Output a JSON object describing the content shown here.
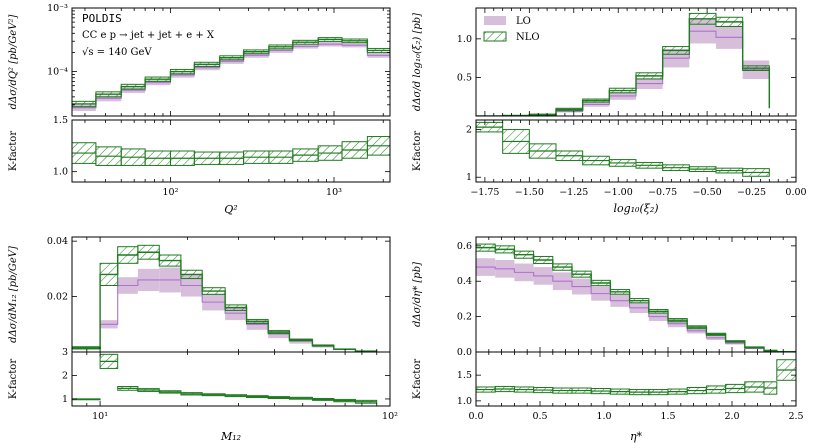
{
  "chart_data": [
    {
      "type": "histogram",
      "id": "q2",
      "title": "",
      "annotations": [
        "POLDIS",
        "CC   e p → jet + jet + e + X",
        "√s = 140 GeV"
      ],
      "xlabel": "Q²",
      "ylabel_top": "dΔσ/dQ² [pb/GeV²]",
      "ylabel_bottom": "K-factor",
      "x_scale": "log",
      "y_scale_top": "log",
      "xlim": [
        25,
        2200
      ],
      "ylim_top": [
        2e-05,
        0.001
      ],
      "ylim_bottom": [
        0.9,
        1.5
      ],
      "x_tick_labels": [
        "10²",
        "10³"
      ],
      "y_tick_labels_top": [
        "10⁻³",
        "10⁻⁴"
      ],
      "y_tick_labels_bottom": [
        "1.0",
        "1.5"
      ],
      "bins": [
        25,
        35,
        50,
        70,
        100,
        140,
        200,
        280,
        400,
        560,
        800,
        1120,
        1600,
        2200
      ],
      "lo": [
        2.7e-05,
        3.8e-05,
        5.1e-05,
        6.7e-05,
        8.8e-05,
        0.000115,
        0.000145,
        0.00018,
        0.000215,
        0.00025,
        0.00027,
        0.00026,
        0.00018
      ],
      "lo_err": [
        3e-06,
        4e-06,
        5e-06,
        6e-06,
        8e-06,
        1e-05,
        1.3e-05,
        1.5e-05,
        1.8e-05,
        2e-05,
        2.2e-05,
        2e-05,
        1.5e-05
      ],
      "nlo": [
        3.1e-05,
        4.4e-05,
        5.8e-05,
        7.6e-05,
        0.0001,
        0.00013,
        0.000165,
        0.000205,
        0.000245,
        0.00029,
        0.00032,
        0.000305,
        0.000215
      ],
      "nlo_err": [
        3e-06,
        4e-06,
        5e-06,
        6e-06,
        8e-06,
        1e-05,
        1.2e-05,
        1.4e-05,
        1.7e-05,
        2e-05,
        2.2e-05,
        2e-05,
        1.6e-05
      ],
      "k": [
        1.18,
        1.15,
        1.14,
        1.13,
        1.13,
        1.13,
        1.13,
        1.14,
        1.14,
        1.16,
        1.18,
        1.21,
        1.25
      ],
      "k_err": [
        0.1,
        0.09,
        0.08,
        0.07,
        0.07,
        0.06,
        0.06,
        0.06,
        0.06,
        0.06,
        0.07,
        0.08,
        0.09
      ]
    },
    {
      "type": "histogram",
      "id": "xi2",
      "legend": [
        "LO",
        "NLO"
      ],
      "legend_loc": "top-left",
      "xlabel": "log₁₀(ξ₂)",
      "ylabel_top": "dΔσ/d log₁₀(ξ₂) [pb]",
      "ylabel_bottom": "K-factor",
      "x_scale": "linear",
      "xlim": [
        -1.8,
        0.0
      ],
      "ylim_top": [
        0.0,
        1.4
      ],
      "ylim_bottom": [
        0.9,
        2.2
      ],
      "x_tick_labels": [
        "−1.75",
        "−1.50",
        "−1.25",
        "−1.00",
        "−0.75",
        "−0.50",
        "−0.25",
        "0.00"
      ],
      "x_tick_values": [
        -1.75,
        -1.5,
        -1.25,
        -1.0,
        -0.75,
        -0.5,
        -0.25,
        0.0
      ],
      "y_tick_labels_top": [
        "0.5",
        "1.0"
      ],
      "y_tick_values_top": [
        0.5,
        1.0
      ],
      "y_tick_labels_bottom": [
        "1",
        "2"
      ],
      "y_tick_values_bottom": [
        1,
        2
      ],
      "bins": [
        -1.8,
        -1.65,
        -1.5,
        -1.35,
        -1.2,
        -1.05,
        -0.9,
        -0.75,
        -0.6,
        -0.45,
        -0.3,
        -0.15
      ],
      "lo": [
        0.0,
        0.003,
        0.012,
        0.06,
        0.15,
        0.26,
        0.42,
        0.75,
        1.1,
        1.02,
        0.6,
        0.12
      ],
      "lo_err": [
        0.0,
        0.002,
        0.005,
        0.015,
        0.03,
        0.05,
        0.07,
        0.12,
        0.16,
        0.15,
        0.12,
        0.04
      ],
      "nlo": [
        0.0,
        0.005,
        0.018,
        0.085,
        0.2,
        0.33,
        0.52,
        0.85,
        1.26,
        1.22,
        0.62,
        0.1
      ],
      "nlo_err": [
        0.0,
        0.003,
        0.006,
        0.015,
        0.02,
        0.03,
        0.04,
        0.05,
        0.07,
        0.06,
        0.03,
        0.01
      ],
      "k": [
        2.05,
        1.75,
        1.55,
        1.45,
        1.35,
        1.3,
        1.25,
        1.2,
        1.17,
        1.14,
        1.1
      ],
      "k_err": [
        0.1,
        0.25,
        0.15,
        0.1,
        0.09,
        0.07,
        0.06,
        0.06,
        0.05,
        0.05,
        0.08
      ]
    },
    {
      "type": "histogram",
      "id": "m12",
      "xlabel": "M₁₂",
      "ylabel_top": "dΔσ/dM₁₂ [pb/GeV]",
      "ylabel_bottom": "K-factor",
      "x_scale": "log",
      "xlim": [
        8,
        100
      ],
      "ylim_top": [
        0.0,
        0.0415
      ],
      "ylim_bottom": [
        0.7,
        3.0
      ],
      "x_tick_labels": [
        "10¹",
        "10²"
      ],
      "x_tick_values": [
        10,
        100
      ],
      "y_tick_labels_top": [
        "0.02",
        "0.04"
      ],
      "y_tick_values_top": [
        0.02,
        0.04
      ],
      "y_tick_labels_bottom": [
        "1",
        "2",
        "3"
      ],
      "y_tick_values_bottom": [
        1,
        2,
        3
      ],
      "bins": [
        8,
        10,
        11.5,
        13.5,
        16,
        19,
        22.5,
        27,
        32,
        38,
        45,
        54,
        64,
        76,
        90
      ],
      "lo": [
        0.0015,
        0.01,
        0.024,
        0.026,
        0.026,
        0.024,
        0.018,
        0.014,
        0.01,
        0.0065,
        0.004,
        0.0022,
        0.001,
        0.0003
      ],
      "lo_err": [
        0.0004,
        0.0015,
        0.003,
        0.004,
        0.0045,
        0.004,
        0.003,
        0.0025,
        0.002,
        0.0015,
        0.001,
        0.0006,
        0.0003,
        0.0001
      ],
      "nlo": [
        0.0015,
        0.028,
        0.035,
        0.036,
        0.033,
        0.028,
        0.022,
        0.016,
        0.011,
        0.0072,
        0.0043,
        0.0023,
        0.001,
        0.0003
      ],
      "nlo_err": [
        0.0004,
        0.004,
        0.003,
        0.0025,
        0.002,
        0.0015,
        0.0012,
        0.001,
        0.0007,
        0.0005,
        0.0003,
        0.0002,
        0.0001,
        0.0001
      ],
      "k": [
        1.0,
        2.6,
        1.45,
        1.38,
        1.3,
        1.22,
        1.18,
        1.14,
        1.1,
        1.06,
        1.03,
        0.98,
        0.93,
        0.88
      ],
      "k_err": [
        0.0,
        0.3,
        0.08,
        0.06,
        0.05,
        0.05,
        0.04,
        0.04,
        0.04,
        0.04,
        0.04,
        0.04,
        0.05,
        0.06
      ]
    },
    {
      "type": "histogram",
      "id": "eta",
      "xlabel": "η*",
      "ylabel_top": "dΔσ/dη* [pb]",
      "ylabel_bottom": "K-factor",
      "x_scale": "linear",
      "xlim": [
        0.0,
        2.5
      ],
      "ylim_top": [
        0.0,
        0.65
      ],
      "ylim_bottom": [
        0.9,
        1.95
      ],
      "x_tick_labels": [
        "0.0",
        "0.5",
        "1.0",
        "1.5",
        "2.0",
        "2.5"
      ],
      "x_tick_values": [
        0.0,
        0.5,
        1.0,
        1.5,
        2.0,
        2.5
      ],
      "y_tick_labels_top": [
        "0.0",
        "0.2",
        "0.4",
        "0.6"
      ],
      "y_tick_values_top": [
        0.0,
        0.2,
        0.4,
        0.6
      ],
      "y_tick_labels_bottom": [
        "1.0",
        "1.5"
      ],
      "y_tick_values_bottom": [
        1.0,
        1.5
      ],
      "bins": [
        0.0,
        0.15,
        0.3,
        0.45,
        0.6,
        0.75,
        0.9,
        1.05,
        1.2,
        1.35,
        1.5,
        1.65,
        1.8,
        1.95,
        2.1,
        2.25,
        2.35,
        2.5
      ],
      "lo": [
        0.48,
        0.47,
        0.45,
        0.43,
        0.4,
        0.37,
        0.33,
        0.29,
        0.25,
        0.2,
        0.16,
        0.12,
        0.08,
        0.05,
        0.02,
        0.006,
        0.002
      ],
      "lo_err": [
        0.05,
        0.05,
        0.05,
        0.05,
        0.05,
        0.045,
        0.04,
        0.035,
        0.03,
        0.025,
        0.02,
        0.015,
        0.012,
        0.008,
        0.004,
        0.002,
        0.001
      ],
      "nlo": [
        0.59,
        0.58,
        0.55,
        0.52,
        0.48,
        0.44,
        0.39,
        0.34,
        0.29,
        0.23,
        0.18,
        0.14,
        0.1,
        0.06,
        0.026,
        0.008,
        0.002
      ],
      "nlo_err": [
        0.02,
        0.02,
        0.02,
        0.02,
        0.018,
        0.017,
        0.015,
        0.013,
        0.012,
        0.01,
        0.009,
        0.008,
        0.006,
        0.004,
        0.003,
        0.002,
        0.001
      ],
      "k": [
        1.22,
        1.23,
        1.22,
        1.21,
        1.2,
        1.2,
        1.19,
        1.18,
        1.17,
        1.17,
        1.18,
        1.2,
        1.22,
        1.24,
        1.27,
        1.25,
        1.6
      ],
      "k_err": [
        0.05,
        0.05,
        0.05,
        0.05,
        0.05,
        0.05,
        0.05,
        0.05,
        0.05,
        0.05,
        0.05,
        0.06,
        0.07,
        0.08,
        0.1,
        0.12,
        0.2
      ]
    }
  ],
  "colors": {
    "lo_fill": "#d7bfdc",
    "lo_line": "#b070d0",
    "nlo_line": "#1e7a1e",
    "nlo_hatch": "#2e8b2e",
    "axis": "#000000"
  }
}
